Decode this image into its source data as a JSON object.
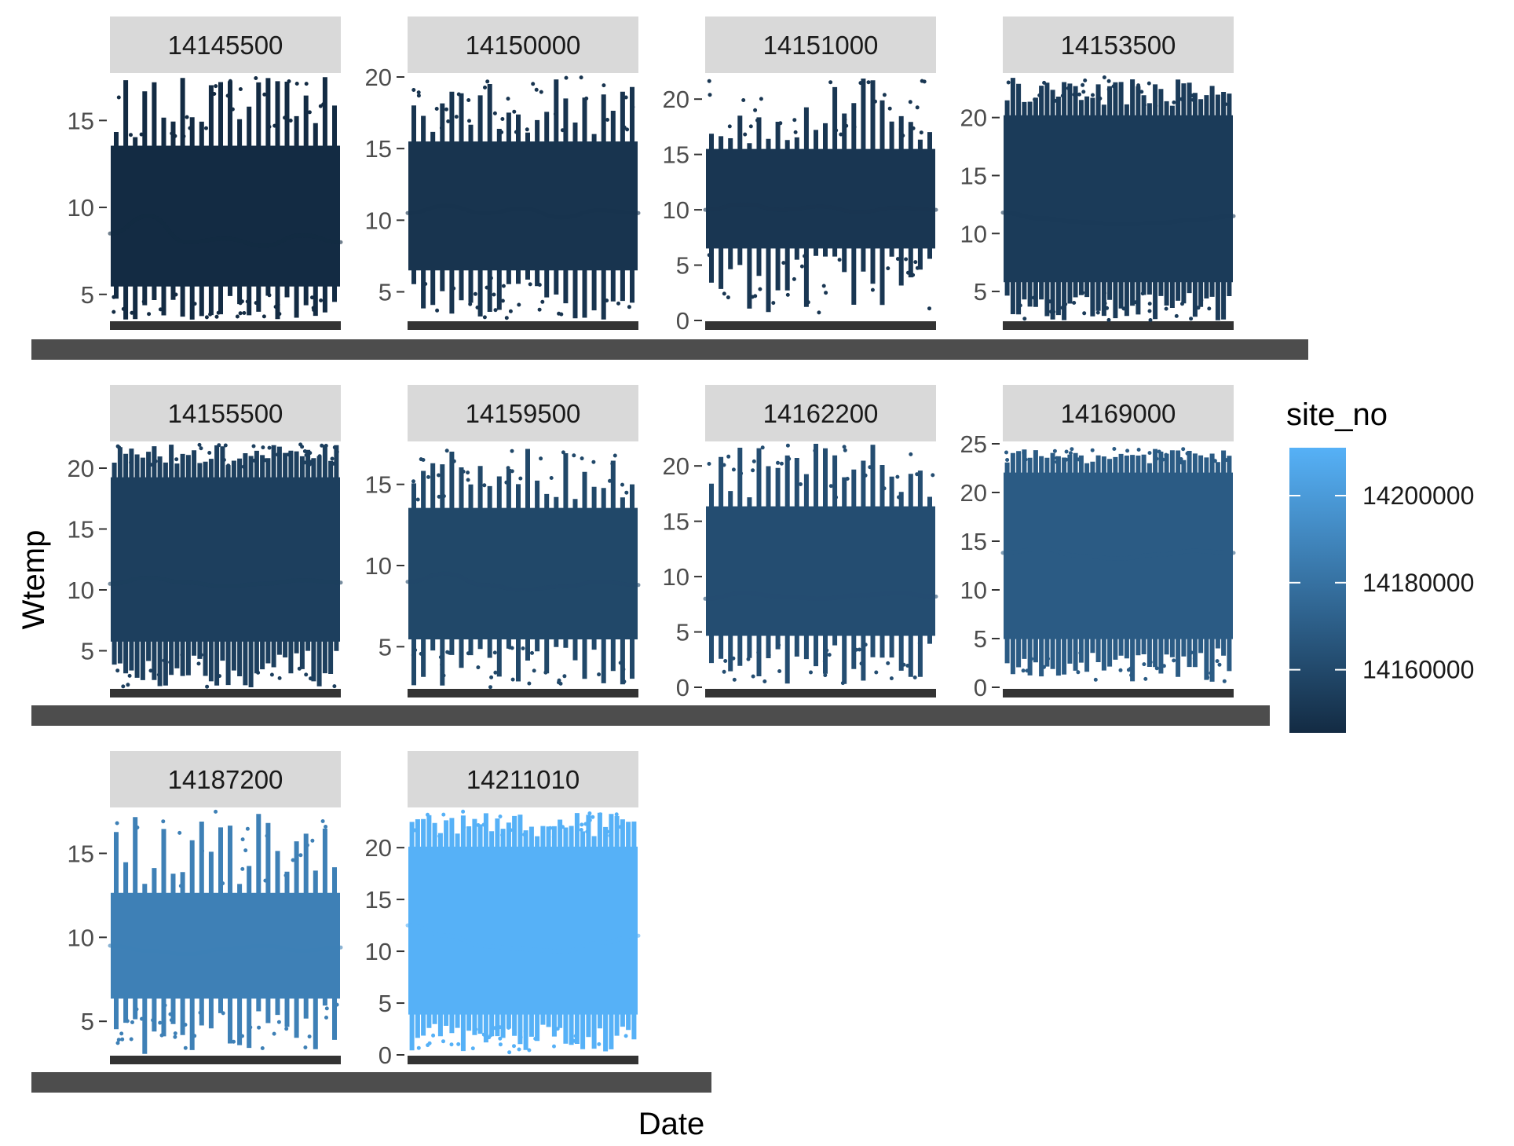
{
  "chart_data": {
    "type": "scatter",
    "title": "",
    "xlabel": "Date",
    "ylabel": "Wtemp",
    "facet_by": "site_no",
    "scales": "free",
    "layout": {
      "ncol": 4,
      "nrow": 3
    },
    "smooth_line": true,
    "legend": {
      "title": "site_no",
      "position": "right",
      "type": "colorbar",
      "range": [
        14145500,
        14211010
      ],
      "breaks": [
        14160000,
        14180000,
        14200000
      ],
      "break_labels": [
        "14160000",
        "14180000",
        "14200000"
      ],
      "low_color": "#132B43",
      "high_color": "#56B1F7"
    },
    "panels": [
      {
        "site": "14145500",
        "ylim": [
          3.5,
          17.5
        ],
        "yticks": [
          5,
          10,
          15
        ],
        "ybreak_labels": [
          "5",
          "10",
          "15"
        ],
        "ymin": 3.5,
        "ymax": 17.5,
        "low": 5,
        "high": 14,
        "smooth": [
          8.5,
          9.5,
          8.0,
          8.2,
          7.8,
          8.4,
          8.0
        ],
        "cycles": 12
      },
      {
        "site": "14150000",
        "ylim": [
          3.0,
          20.0
        ],
        "yticks": [
          5,
          10,
          15,
          20
        ],
        "ybreak_labels": [
          "5",
          "10",
          "15",
          "20"
        ],
        "ymin": 3.0,
        "ymax": 20.0,
        "low": 6,
        "high": 16,
        "smooth": [
          10.5,
          11.0,
          10.5,
          10.8,
          10.2,
          10.7,
          10.5
        ],
        "cycles": 12
      },
      {
        "site": "14151000",
        "ylim": [
          0,
          22
        ],
        "yticks": [
          0,
          5,
          10,
          15,
          20
        ],
        "ybreak_labels": [
          "0",
          "5",
          "10",
          "15",
          "20"
        ],
        "ymin": 0.5,
        "ymax": 22.0,
        "low": 6,
        "high": 16,
        "smooth": [
          10.0,
          10.5,
          10.0,
          10.3,
          9.8,
          10.2,
          10.0
        ],
        "cycles": 12
      },
      {
        "site": "14153500",
        "ylim": [
          2.5,
          23.5
        ],
        "yticks": [
          5,
          10,
          15,
          20
        ],
        "ybreak_labels": [
          "5",
          "10",
          "15",
          "20"
        ],
        "ymin": 2.5,
        "ymax": 23.5,
        "low": 5,
        "high": 21,
        "smooth": [
          11.8,
          11.3,
          11.0,
          10.8,
          10.9,
          11.2,
          11.5
        ],
        "cycles": 20
      },
      {
        "site": "14155500",
        "ylim": [
          2.0,
          22.0
        ],
        "yticks": [
          5,
          10,
          15,
          20
        ],
        "ybreak_labels": [
          "5",
          "10",
          "15",
          "20"
        ],
        "ymin": 2.0,
        "ymax": 22.0,
        "low": 5,
        "high": 20,
        "smooth": [
          10.5,
          11.0,
          10.6,
          10.3,
          10.5,
          10.8,
          10.6
        ],
        "cycles": 20
      },
      {
        "site": "14159500",
        "ylim": [
          2.5,
          17.5
        ],
        "yticks": [
          5,
          10,
          15
        ],
        "ybreak_labels": [
          "5",
          "10",
          "15"
        ],
        "ymin": 2.5,
        "ymax": 17.5,
        "low": 5,
        "high": 14,
        "smooth": [
          9.0,
          9.5,
          8.8,
          8.5,
          8.7,
          9.0,
          8.8
        ],
        "cycles": 12
      },
      {
        "site": "14162200",
        "ylim": [
          0,
          22
        ],
        "yticks": [
          0,
          5,
          10,
          15,
          20
        ],
        "ybreak_labels": [
          "0",
          "5",
          "10",
          "15",
          "20"
        ],
        "ymin": 0.3,
        "ymax": 22.0,
        "low": 4,
        "high": 17,
        "smooth": [
          8.0,
          8.5,
          8.2,
          8.0,
          8.3,
          8.5,
          8.2
        ],
        "cycles": 12
      },
      {
        "site": "14169000",
        "ylim": [
          0,
          25
        ],
        "yticks": [
          0,
          5,
          10,
          15,
          20,
          25
        ],
        "ybreak_labels": [
          "0",
          "5",
          "10",
          "15",
          "20",
          "25"
        ],
        "ymin": 0.5,
        "ymax": 24.5,
        "low": 4,
        "high": 23,
        "smooth": [
          13.8,
          14.2,
          13.5,
          13.2,
          13.6,
          14.0,
          13.8
        ],
        "cycles": 20
      },
      {
        "site": "14187200",
        "ylim": [
          3.0,
          17.5
        ],
        "yticks": [
          5,
          10,
          15
        ],
        "ybreak_labels": [
          "5",
          "10",
          "15"
        ],
        "ymin": 3.0,
        "ymax": 17.5,
        "low": 6,
        "high": 13,
        "smooth": [
          9.5,
          9.2,
          9.0,
          9.3,
          9.5,
          9.2,
          9.4
        ],
        "cycles": 12
      },
      {
        "site": "14211010",
        "ylim": [
          0,
          23.5
        ],
        "yticks": [
          0,
          5,
          10,
          15,
          20
        ],
        "ybreak_labels": [
          "0",
          "5",
          "10",
          "15",
          "20"
        ],
        "ymin": 0.2,
        "ymax": 23.5,
        "low": 3,
        "high": 21,
        "smooth": [
          12.5,
          11.5,
          10.5,
          10.2,
          10.0,
          10.8,
          11.5
        ],
        "cycles": 20
      }
    ]
  }
}
